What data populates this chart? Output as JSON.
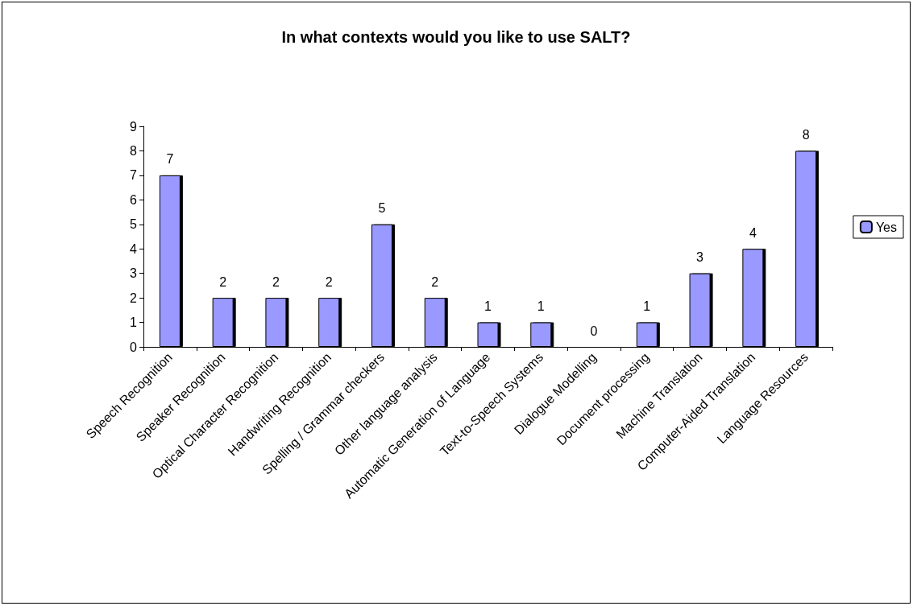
{
  "chart_data": {
    "type": "bar",
    "title": "In what contexts would you like to use SALT?",
    "categories": [
      "Speech Recognition",
      "Speaker Recognition",
      "Optical Character Recognition",
      "Handwriting Recognition",
      "Spelling / Grammar checkers",
      "Other language analysis",
      "Automatic Generation of Language",
      "Text-to-Speech Systems",
      "Dialogue Modelling",
      "Document processing",
      "Machine Translation",
      "Computer-Aided Translation",
      "Language Resources"
    ],
    "series": [
      {
        "name": "Yes",
        "color": "#9999ff",
        "values": [
          7,
          2,
          2,
          2,
          5,
          2,
          1,
          1,
          0,
          1,
          3,
          4,
          8
        ]
      }
    ],
    "ylim": [
      0,
      9
    ],
    "yticks": [
      0,
      1,
      2,
      3,
      4,
      5,
      6,
      7,
      8,
      9
    ],
    "grid": false,
    "legend": "right",
    "data_labels": true
  }
}
